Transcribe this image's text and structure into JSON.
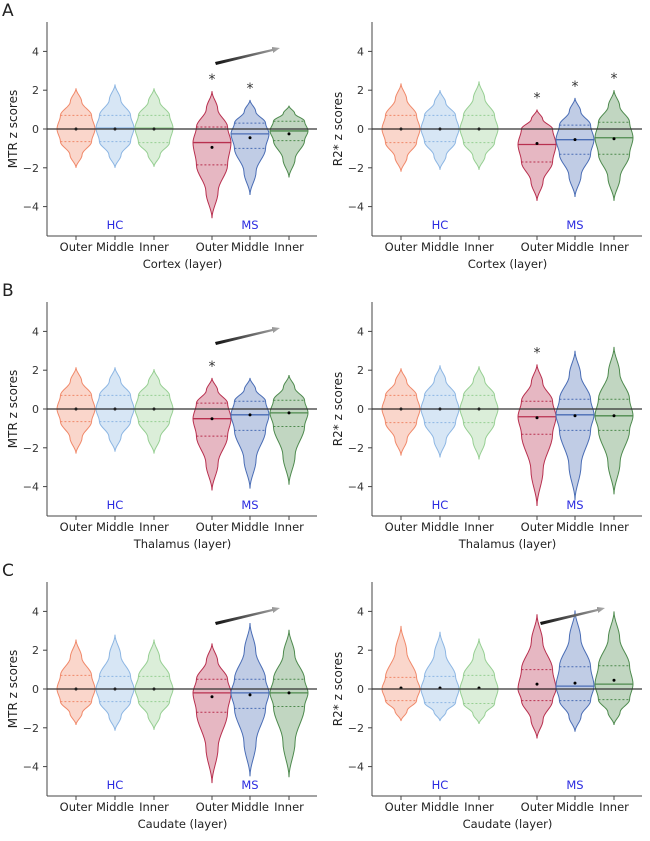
{
  "colors": {
    "hc_outer": "#f0896a",
    "hc_middle": "#8db6e3",
    "hc_inner": "#97cf93",
    "ms_outer": "#b8304f",
    "ms_middle": "#4a6db5",
    "ms_inner": "#4e8a4e",
    "group_label": "#2a2ae0"
  },
  "chart_data": [
    {
      "type": "violin",
      "panel_label": "A",
      "ylabel": "MTR z scores",
      "xlabel": "Cortex (layer)",
      "ylim": [
        -5.5,
        5.5
      ],
      "yticks": [
        -4,
        -2,
        0,
        2,
        4
      ],
      "groups": [
        "HC",
        "MS"
      ],
      "categories": [
        "Outer",
        "Middle",
        "Inner",
        "Outer",
        "Middle",
        "Inner"
      ],
      "trend_arrow": true,
      "violins": [
        {
          "group": "HC",
          "layer": "Outer",
          "min": -2.0,
          "max": 2.1,
          "q1": -0.65,
          "median": 0,
          "q3": 0.7,
          "mean": 0,
          "significant": false
        },
        {
          "group": "HC",
          "layer": "Middle",
          "min": -2.0,
          "max": 2.3,
          "q1": -0.65,
          "median": 0.05,
          "q3": 0.7,
          "mean": 0,
          "significant": false
        },
        {
          "group": "HC",
          "layer": "Inner",
          "min": -1.95,
          "max": 2.1,
          "q1": -0.7,
          "median": 0.05,
          "q3": 0.7,
          "mean": 0,
          "significant": false
        },
        {
          "group": "MS",
          "layer": "Outer",
          "min": -4.6,
          "max": 1.95,
          "q1": -1.85,
          "median": -0.7,
          "q3": 0.1,
          "mean": -0.95,
          "significant": true
        },
        {
          "group": "MS",
          "layer": "Middle",
          "min": -3.4,
          "max": 1.5,
          "q1": -1.0,
          "median": -0.25,
          "q3": 0.3,
          "mean": -0.45,
          "significant": true
        },
        {
          "group": "MS",
          "layer": "Inner",
          "min": -2.5,
          "max": 1.2,
          "q1": -0.6,
          "median": -0.1,
          "q3": 0.4,
          "mean": -0.25,
          "significant": false
        }
      ]
    },
    {
      "type": "violin",
      "panel_label": "",
      "ylabel": "R2* z scores",
      "xlabel": "Cortex (layer)",
      "ylim": [
        -5.5,
        5.5
      ],
      "yticks": [
        -4,
        -2,
        0,
        2,
        4
      ],
      "groups": [
        "HC",
        "MS"
      ],
      "categories": [
        "Outer",
        "Middle",
        "Inner",
        "Outer",
        "Middle",
        "Inner"
      ],
      "trend_arrow": false,
      "violins": [
        {
          "group": "HC",
          "layer": "Outer",
          "min": -2.2,
          "max": 2.35,
          "q1": -0.7,
          "median": 0,
          "q3": 0.7,
          "mean": 0,
          "significant": false
        },
        {
          "group": "HC",
          "layer": "Middle",
          "min": -2.1,
          "max": 2.0,
          "q1": -0.65,
          "median": 0,
          "q3": 0.7,
          "mean": 0,
          "significant": false
        },
        {
          "group": "HC",
          "layer": "Inner",
          "min": -2.1,
          "max": 2.45,
          "q1": -0.7,
          "median": 0,
          "q3": 0.7,
          "mean": 0,
          "significant": false
        },
        {
          "group": "MS",
          "layer": "Outer",
          "min": -3.7,
          "max": 1.0,
          "q1": -1.7,
          "median": -0.8,
          "q3": 0.0,
          "mean": -0.75,
          "significant": true
        },
        {
          "group": "MS",
          "layer": "Middle",
          "min": -3.5,
          "max": 1.6,
          "q1": -1.3,
          "median": -0.55,
          "q3": 0.2,
          "mean": -0.55,
          "significant": true
        },
        {
          "group": "MS",
          "layer": "Inner",
          "min": -3.7,
          "max": 2.0,
          "q1": -1.3,
          "median": -0.45,
          "q3": 0.35,
          "mean": -0.5,
          "significant": true
        }
      ]
    },
    {
      "type": "violin",
      "panel_label": "B",
      "ylabel": "MTR z scores",
      "xlabel": "Thalamus (layer)",
      "ylim": [
        -5.5,
        5.5
      ],
      "yticks": [
        -4,
        -2,
        0,
        2,
        4
      ],
      "groups": [
        "HC",
        "MS"
      ],
      "categories": [
        "Outer",
        "Middle",
        "Inner",
        "Outer",
        "Middle",
        "Inner"
      ],
      "trend_arrow": true,
      "violins": [
        {
          "group": "HC",
          "layer": "Outer",
          "min": -2.3,
          "max": 2.15,
          "q1": -0.65,
          "median": 0,
          "q3": 0.7,
          "mean": 0,
          "significant": false
        },
        {
          "group": "HC",
          "layer": "Middle",
          "min": -2.2,
          "max": 2.15,
          "q1": -0.65,
          "median": 0,
          "q3": 0.7,
          "mean": 0,
          "significant": false
        },
        {
          "group": "HC",
          "layer": "Inner",
          "min": -2.3,
          "max": 2.05,
          "q1": -0.65,
          "median": 0,
          "q3": 0.7,
          "mean": 0,
          "significant": false
        },
        {
          "group": "MS",
          "layer": "Outer",
          "min": -4.2,
          "max": 1.6,
          "q1": -1.4,
          "median": -0.5,
          "q3": 0.3,
          "mean": -0.5,
          "significant": true
        },
        {
          "group": "MS",
          "layer": "Middle",
          "min": -4.1,
          "max": 1.6,
          "q1": -1.1,
          "median": -0.3,
          "q3": 0.4,
          "mean": -0.3,
          "significant": false
        },
        {
          "group": "MS",
          "layer": "Inner",
          "min": -3.9,
          "max": 1.75,
          "q1": -0.9,
          "median": -0.2,
          "q3": 0.45,
          "mean": -0.2,
          "significant": false
        }
      ]
    },
    {
      "type": "violin",
      "panel_label": "",
      "ylabel": "R2* z scores",
      "xlabel": "Thalamus (layer)",
      "ylim": [
        -5.5,
        5.5
      ],
      "yticks": [
        -4,
        -2,
        0,
        2,
        4
      ],
      "groups": [
        "HC",
        "MS"
      ],
      "categories": [
        "Outer",
        "Middle",
        "Inner",
        "Outer",
        "Middle",
        "Inner"
      ],
      "trend_arrow": false,
      "violins": [
        {
          "group": "HC",
          "layer": "Outer",
          "min": -2.4,
          "max": 2.1,
          "q1": -0.7,
          "median": 0,
          "q3": 0.7,
          "mean": 0,
          "significant": false
        },
        {
          "group": "HC",
          "layer": "Middle",
          "min": -2.5,
          "max": 2.25,
          "q1": -0.7,
          "median": 0,
          "q3": 0.7,
          "mean": 0,
          "significant": false
        },
        {
          "group": "HC",
          "layer": "Inner",
          "min": -2.6,
          "max": 2.2,
          "q1": -0.7,
          "median": 0,
          "q3": 0.7,
          "mean": 0,
          "significant": false
        },
        {
          "group": "MS",
          "layer": "Outer",
          "min": -5.0,
          "max": 2.3,
          "q1": -1.3,
          "median": -0.4,
          "q3": 0.4,
          "mean": -0.45,
          "significant": true
        },
        {
          "group": "MS",
          "layer": "Middle",
          "min": -4.7,
          "max": 3.0,
          "q1": -1.1,
          "median": -0.3,
          "q3": 0.5,
          "mean": -0.35,
          "significant": false
        },
        {
          "group": "MS",
          "layer": "Inner",
          "min": -4.4,
          "max": 3.2,
          "q1": -1.1,
          "median": -0.35,
          "q3": 0.5,
          "mean": -0.35,
          "significant": false
        }
      ]
    },
    {
      "type": "violin",
      "panel_label": "C",
      "ylabel": "MTR z scores",
      "xlabel": "Caudate (layer)",
      "ylim": [
        -5.5,
        5.5
      ],
      "yticks": [
        -4,
        -2,
        0,
        2,
        4
      ],
      "groups": [
        "HC",
        "MS"
      ],
      "categories": [
        "Outer",
        "Middle",
        "Inner",
        "Outer",
        "Middle",
        "Inner"
      ],
      "trend_arrow": true,
      "violins": [
        {
          "group": "HC",
          "layer": "Outer",
          "min": -1.85,
          "max": 2.55,
          "q1": -0.65,
          "median": 0,
          "q3": 0.7,
          "mean": 0,
          "significant": false
        },
        {
          "group": "HC",
          "layer": "Middle",
          "min": -2.15,
          "max": 2.8,
          "q1": -0.65,
          "median": 0,
          "q3": 0.65,
          "mean": 0,
          "significant": false
        },
        {
          "group": "HC",
          "layer": "Inner",
          "min": -2.1,
          "max": 2.55,
          "q1": -0.65,
          "median": 0,
          "q3": 0.65,
          "mean": 0,
          "significant": false
        },
        {
          "group": "MS",
          "layer": "Outer",
          "min": -4.85,
          "max": 2.35,
          "q1": -1.2,
          "median": -0.2,
          "q3": 0.5,
          "mean": -0.4,
          "significant": false
        },
        {
          "group": "MS",
          "layer": "Middle",
          "min": -4.5,
          "max": 3.4,
          "q1": -1.0,
          "median": -0.2,
          "q3": 0.5,
          "mean": -0.3,
          "significant": false
        },
        {
          "group": "MS",
          "layer": "Inner",
          "min": -4.55,
          "max": 3.05,
          "q1": -0.9,
          "median": -0.2,
          "q3": 0.5,
          "mean": -0.2,
          "significant": false
        }
      ]
    },
    {
      "type": "violin",
      "panel_label": "",
      "ylabel": "R2* z scores",
      "xlabel": "Caudate (layer)",
      "ylim": [
        -5.5,
        5.5
      ],
      "yticks": [
        -4,
        -2,
        0,
        2,
        4
      ],
      "groups": [
        "HC",
        "MS"
      ],
      "categories": [
        "Outer",
        "Middle",
        "Inner",
        "Outer",
        "Middle",
        "Inner"
      ],
      "trend_arrow": true,
      "violins": [
        {
          "group": "HC",
          "layer": "Outer",
          "min": -1.65,
          "max": 3.25,
          "q1": -0.6,
          "median": 0,
          "q3": 0.6,
          "mean": 0.05,
          "significant": false
        },
        {
          "group": "HC",
          "layer": "Middle",
          "min": -1.65,
          "max": 2.95,
          "q1": -0.7,
          "median": 0,
          "q3": 0.65,
          "mean": 0.05,
          "significant": false
        },
        {
          "group": "HC",
          "layer": "Inner",
          "min": -1.8,
          "max": 2.6,
          "q1": -0.75,
          "median": 0,
          "q3": 0.7,
          "mean": 0.05,
          "significant": false
        },
        {
          "group": "MS",
          "layer": "Outer",
          "min": -2.55,
          "max": 3.85,
          "q1": -0.6,
          "median": 0,
          "q3": 1.0,
          "mean": 0.25,
          "significant": false
        },
        {
          "group": "MS",
          "layer": "Middle",
          "min": -2.2,
          "max": 4.05,
          "q1": -0.6,
          "median": 0.15,
          "q3": 1.15,
          "mean": 0.3,
          "significant": false
        },
        {
          "group": "MS",
          "layer": "Inner",
          "min": -1.85,
          "max": 4.0,
          "q1": -0.55,
          "median": 0.25,
          "q3": 1.2,
          "mean": 0.45,
          "significant": false
        }
      ]
    }
  ]
}
